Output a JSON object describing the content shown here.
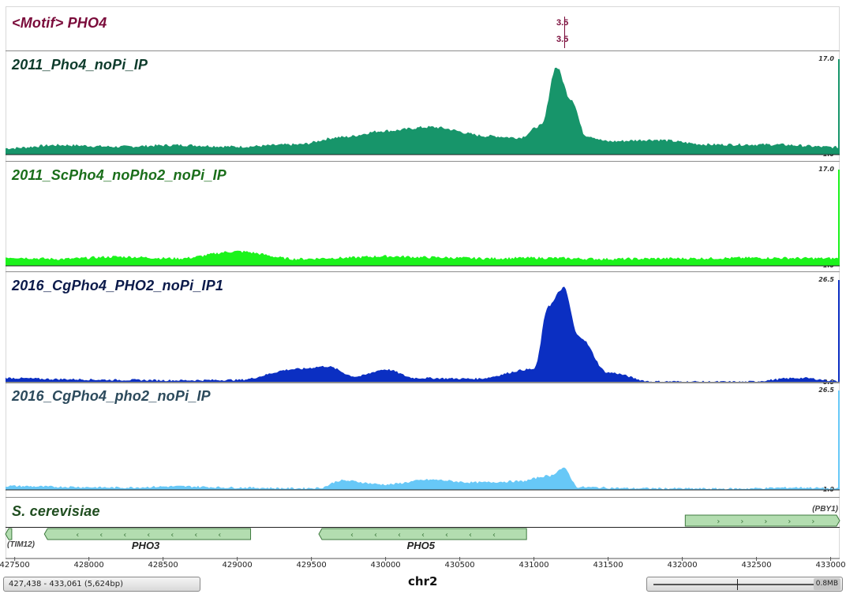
{
  "motif_track": {
    "title": "<Motif> PHO4",
    "hits": [
      {
        "label": "3.5",
        "position": 431200
      },
      {
        "label": "3.5",
        "position": 431200
      }
    ],
    "color": "#7a0b3a"
  },
  "coverage_tracks": [
    {
      "id": "t1",
      "title": "2011_Pho4_noPi_IP",
      "title_color": "#0d3b2b",
      "fill": "#17956a",
      "max_label": "17.0",
      "min_label": "-1.0",
      "max": 17.0,
      "min": -1.0
    },
    {
      "id": "t2",
      "title": "2011_ScPho4_noPho2_noPi_IP",
      "title_color": "#1a6e1a",
      "fill": "#1cf31c",
      "max_label": "17.0",
      "min_label": "-1.0",
      "max": 17.0,
      "min": -1.0
    },
    {
      "id": "t3",
      "title": "2016_CgPho4_PHO2_noPi_IP1",
      "title_color": "#0b1a4a",
      "fill": "#0b2fc2",
      "max_label": "26.5",
      "min_label": "0.0",
      "max": 26.5,
      "min": 0.0
    },
    {
      "id": "t4",
      "title": "2016_CgPho4_pho2_noPi_IP",
      "title_color": "#2c4a5c",
      "fill": "#67c8f7",
      "max_label": "26.5",
      "min_label": "1.0",
      "max": 26.5,
      "min": 1.0
    }
  ],
  "gene_track": {
    "title": "S. cerevisiae",
    "title_color": "#1f4d1f",
    "genes": [
      {
        "name": "(TIM12)",
        "start": 427438,
        "end": 427480,
        "strand": "-"
      },
      {
        "name": "PHO3",
        "start": 427700,
        "end": 429090,
        "strand": "-"
      },
      {
        "name": "PHO5",
        "start": 429550,
        "end": 430950,
        "strand": "-"
      },
      {
        "name": "(PBY1)",
        "start": 432020,
        "end": 433061,
        "strand": "+"
      }
    ]
  },
  "ruler": {
    "start": 427438,
    "end": 433061,
    "ticks": [
      "427500",
      "428000",
      "428500",
      "429000",
      "429500",
      "430000",
      "430500",
      "431000",
      "431500",
      "432000",
      "432500",
      "433000"
    ]
  },
  "status": {
    "locus": "427,438 - 433,061 (5,624bp)",
    "chromosome": "chr2",
    "zoom_label": "0.8MB"
  },
  "chart_data": [
    {
      "type": "area",
      "title": "2011_Pho4_noPi_IP",
      "ylim": [
        -1.0,
        17.0
      ],
      "x": [
        427438,
        427800,
        428200,
        428600,
        429000,
        429400,
        429700,
        430000,
        430300,
        430700,
        430900,
        431050,
        431150,
        431250,
        431350,
        431500,
        431800,
        432200,
        432600,
        433061
      ],
      "y": [
        0.2,
        0.8,
        0.5,
        0.8,
        0.5,
        0.9,
        2.3,
        3.5,
        4.2,
        2.5,
        2.2,
        4.5,
        15.5,
        9.5,
        2.6,
        1.5,
        1.8,
        0.9,
        0.9,
        0.4
      ]
    },
    {
      "type": "area",
      "title": "2011_ScPho4_noPho2_noPi_IP",
      "ylim": [
        -1.0,
        17.0
      ],
      "x": [
        427438,
        427800,
        428200,
        428600,
        429000,
        429400,
        429700,
        430000,
        430300,
        430700,
        431000,
        431500,
        432000,
        432500,
        433061
      ],
      "y": [
        0.6,
        0.3,
        0.7,
        0.4,
        1.7,
        0.3,
        0.5,
        0.8,
        0.6,
        0.4,
        0.5,
        0.3,
        0.4,
        0.5,
        0.4
      ]
    },
    {
      "type": "area",
      "title": "2016_CgPho4_PHO2_noPi_IP1",
      "ylim": [
        0.0,
        26.5
      ],
      "x": [
        427438,
        427800,
        428200,
        428600,
        429000,
        429400,
        429600,
        429800,
        430000,
        430200,
        430600,
        431000,
        431100,
        431200,
        431300,
        431500,
        431800,
        432400,
        432800,
        433061
      ],
      "y": [
        1.2,
        0.9,
        0.7,
        0.6,
        0.7,
        3.5,
        4.2,
        1.6,
        3.4,
        1.2,
        1.0,
        3.5,
        20.0,
        24.5,
        12.0,
        2.6,
        0.3,
        0.2,
        1.2,
        0.4
      ]
    },
    {
      "type": "area",
      "title": "2016_CgPho4_pho2_noPi_IP",
      "ylim": [
        1.0,
        26.5
      ],
      "x": [
        427438,
        427800,
        428200,
        428600,
        429000,
        429400,
        429550,
        429700,
        430000,
        430300,
        430600,
        430900,
        431100,
        431200,
        431300,
        431700,
        432300,
        432800,
        433061
      ],
      "y": [
        2.0,
        1.8,
        1.6,
        1.9,
        1.6,
        1.4,
        1.5,
        3.4,
        2.4,
        3.6,
        2.9,
        3.2,
        4.6,
        6.5,
        1.7,
        1.4,
        1.3,
        1.6,
        1.3
      ]
    }
  ]
}
